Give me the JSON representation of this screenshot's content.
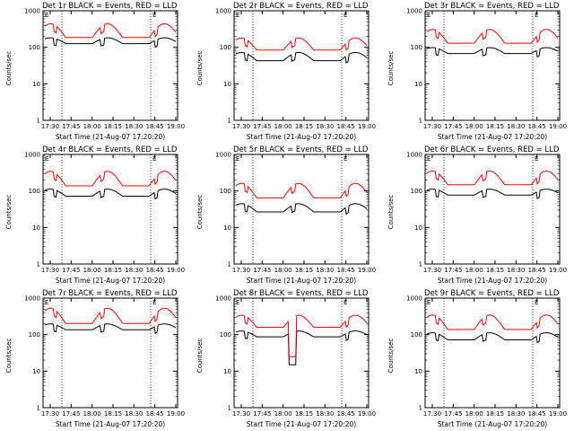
{
  "common": {
    "xlabel": "Start Time (21-Aug-07 17:20:20)",
    "ylabel": "Counts/sec",
    "x_ticks": [
      "17:30",
      "17:45",
      "18:00",
      "18:15",
      "18:30",
      "18:45",
      "19:00"
    ],
    "y_ticks": [
      "1",
      "10",
      "100",
      "1000"
    ],
    "marker_E": "E",
    "colors": {
      "events": "#000000",
      "lld": "#ff0000"
    }
  },
  "chart_data": [
    {
      "type": "line",
      "title": "Det 1r BLACK = Events, RED = LLD",
      "xlim": [
        "17:20:20",
        "19:00"
      ],
      "ylim": [
        1,
        1000
      ],
      "log_y": true,
      "series": [
        {
          "name": "BLACK = Events",
          "base": 130,
          "amp": 1.4
        },
        {
          "name": "RED = LLD",
          "base": 200,
          "amp": 2.2
        }
      ]
    },
    {
      "type": "line",
      "title": "Det 2r BLACK = Events, RED = LLD",
      "xlim": [
        "17:20:20",
        "19:00"
      ],
      "ylim": [
        1,
        1000
      ],
      "log_y": true,
      "series": [
        {
          "name": "BLACK = Events",
          "base": 45,
          "amp": 1.6
        },
        {
          "name": "RED = LLD",
          "base": 90,
          "amp": 2.0
        }
      ]
    },
    {
      "type": "line",
      "title": "Det 3r BLACK = Events, RED = LLD",
      "xlim": [
        "17:20:20",
        "19:00"
      ],
      "ylim": [
        1,
        1000
      ],
      "log_y": true,
      "series": [
        {
          "name": "BLACK = Events",
          "base": 70,
          "amp": 1.4
        },
        {
          "name": "RED = LLD",
          "base": 140,
          "amp": 2.2
        }
      ]
    },
    {
      "type": "line",
      "title": "Det 4r BLACK = Events, RED = LLD",
      "xlim": [
        "17:20:20",
        "19:00"
      ],
      "ylim": [
        1,
        1000
      ],
      "log_y": true,
      "series": [
        {
          "name": "BLACK = Events",
          "base": 75,
          "amp": 1.5
        },
        {
          "name": "RED = LLD",
          "base": 150,
          "amp": 2.3
        }
      ]
    },
    {
      "type": "line",
      "title": "Det 5r BLACK = Events, RED = LLD",
      "xlim": [
        "17:20:20",
        "19:00"
      ],
      "ylim": [
        1,
        1000
      ],
      "log_y": true,
      "series": [
        {
          "name": "BLACK = Events",
          "base": 28,
          "amp": 1.6
        },
        {
          "name": "RED = LLD",
          "base": 70,
          "amp": 2.3
        }
      ]
    },
    {
      "type": "line",
      "title": "Det 6r BLACK = Events, RED = LLD",
      "xlim": [
        "17:20:20",
        "19:00"
      ],
      "ylim": [
        1,
        1000
      ],
      "log_y": true,
      "series": [
        {
          "name": "BLACK = Events",
          "base": 80,
          "amp": 1.4
        },
        {
          "name": "RED = LLD",
          "base": 160,
          "amp": 2.2
        }
      ]
    },
    {
      "type": "line",
      "title": "Det 7r BLACK = Events, RED = LLD",
      "xlim": [
        "17:20:20",
        "19:00"
      ],
      "ylim": [
        1,
        1000
      ],
      "log_y": true,
      "series": [
        {
          "name": "BLACK = Events",
          "base": 140,
          "amp": 1.4
        },
        {
          "name": "RED = LLD",
          "base": 220,
          "amp": 2.4
        }
      ]
    },
    {
      "type": "line",
      "title": "Det 8r BLACK = Events, RED = LLD",
      "xlim": [
        "17:20:20",
        "19:00"
      ],
      "ylim": [
        1,
        1000
      ],
      "log_y": true,
      "series": [
        {
          "name": "BLACK = Events",
          "base": 90,
          "amp": 1.4
        },
        {
          "name": "RED = LLD",
          "base": 170,
          "amp": 2.0
        }
      ]
    },
    {
      "type": "line",
      "title": "Det 9r BLACK = Events, RED = LLD",
      "xlim": [
        "17:20:20",
        "19:00"
      ],
      "ylim": [
        1,
        1000
      ],
      "log_y": true,
      "series": [
        {
          "name": "BLACK = Events",
          "base": 75,
          "amp": 1.5
        },
        {
          "name": "RED = LLD",
          "base": 150,
          "amp": 2.3
        }
      ]
    }
  ]
}
